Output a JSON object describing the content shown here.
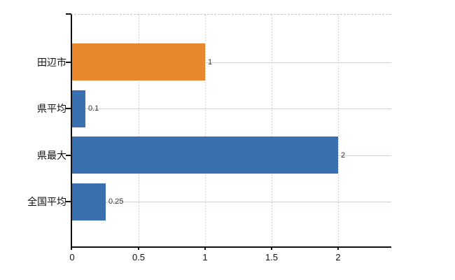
{
  "page": {
    "background": "#ffffff"
  },
  "chart_data": {
    "type": "bar",
    "orientation": "horizontal",
    "title": "",
    "categories": [
      "田辺市",
      "県平均",
      "県最大",
      "全国平均"
    ],
    "values": [
      1,
      0.1,
      2,
      0.25
    ],
    "value_labels": [
      "1",
      "0.1",
      "2",
      "0.25"
    ],
    "bar_colors": [
      "#e8872e",
      "#3a6fb0",
      "#3a6fb0",
      "#3a6fb0"
    ],
    "x_ticks": [
      0,
      0.5,
      1,
      1.5,
      2
    ],
    "x_tick_labels": [
      "0",
      "0.5",
      "1",
      "1.5",
      "2"
    ],
    "xlim": [
      0,
      2.4
    ],
    "grid": true,
    "legend": false,
    "colors": {
      "bar_highlight": "#e8872e",
      "bar_default": "#3a6fb0",
      "axis": "#111111",
      "grid_vertical": "#d4d4d4",
      "grid_horizontal": "#ccd4cc",
      "plot_top_border": "#c4c4c4",
      "category_text": "#111111",
      "value_text": "#333333",
      "tick_text": "#111111"
    }
  }
}
